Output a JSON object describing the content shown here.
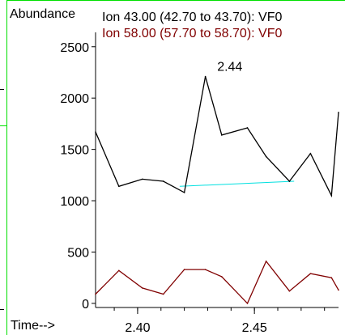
{
  "chart_data": {
    "type": "line",
    "ylabel": "Abundance",
    "xlabel": "Time-->",
    "x_ticks": [
      2.4,
      2.45
    ],
    "y_ticks": [
      0,
      500,
      1000,
      1500,
      2000,
      2500
    ],
    "xlim": [
      2.382,
      2.486
    ],
    "ylim": [
      -40,
      2640
    ],
    "grid": false,
    "series": [
      {
        "name": "Ion  43.00 (42.70 to 43.70): VF0",
        "color": "#000000",
        "x": [
          2.382,
          2.392,
          2.402,
          2.411,
          2.42,
          2.429,
          2.436,
          2.447,
          2.455,
          2.465,
          2.474,
          2.483,
          2.486
        ],
        "y": [
          1670,
          1140,
          1210,
          1190,
          1080,
          2210,
          1640,
          1710,
          1430,
          1190,
          1460,
          1050,
          1860
        ]
      },
      {
        "name": "Ion  58.00 (57.70 to 58.70): VF0",
        "color": "#800000",
        "x": [
          2.382,
          2.392,
          2.402,
          2.411,
          2.42,
          2.429,
          2.436,
          2.447,
          2.455,
          2.465,
          2.474,
          2.483,
          2.486
        ],
        "y": [
          90,
          320,
          150,
          90,
          330,
          330,
          260,
          0,
          410,
          120,
          290,
          250,
          130
        ]
      }
    ],
    "annotations": [
      {
        "text": "2.44",
        "x": 2.436,
        "y": 2210
      }
    ],
    "baseline": {
      "color": "#00e0e0",
      "x": [
        2.418,
        2.467
      ],
      "y": [
        1140,
        1190
      ]
    }
  }
}
